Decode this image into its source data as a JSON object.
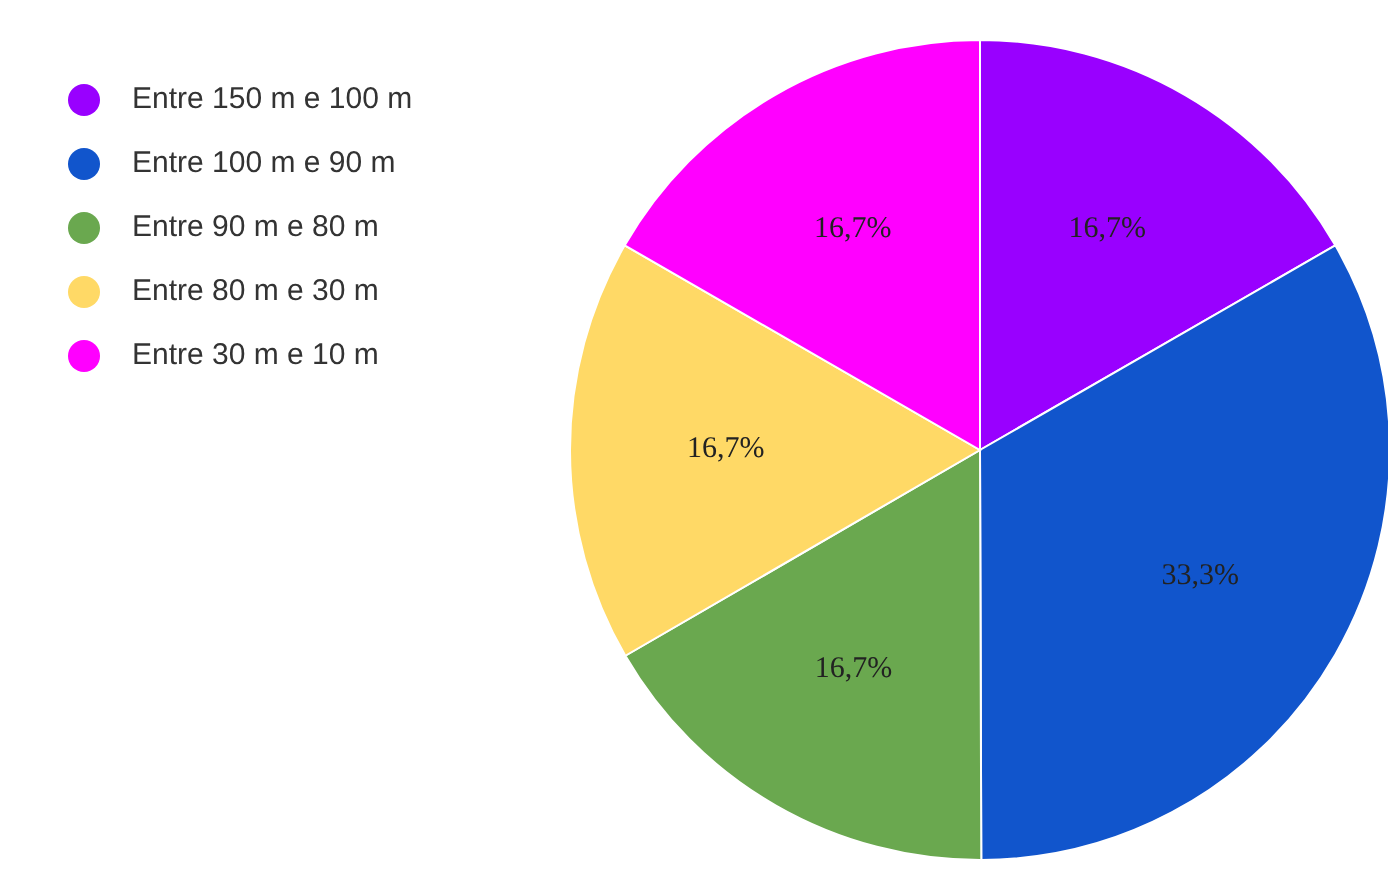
{
  "chart_data": {
    "type": "pie",
    "categories": [
      "Entre 150 m e 100 m",
      "Entre 100 m e 90 m",
      "Entre 90 m e 80 m",
      "Entre 80 m e 30 m",
      "Entre 30 m e 10 m"
    ],
    "values": [
      16.7,
      33.3,
      16.7,
      16.7,
      16.7
    ],
    "value_labels": [
      "16,7%",
      "33,3%",
      "16,7%",
      "16,7%",
      "16,7%"
    ],
    "colors": [
      "#9900ff",
      "#1155cc",
      "#6aa84f",
      "#ffd966",
      "#ff00ff"
    ],
    "legend": "top left"
  }
}
